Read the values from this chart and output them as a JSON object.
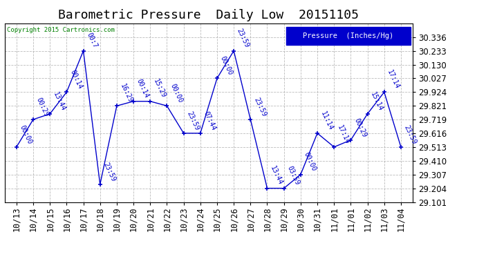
{
  "title": "Barometric Pressure  Daily Low  20151105",
  "copyright": "Copyright 2015 Cartronics.com",
  "legend_label": "Pressure  (Inches/Hg)",
  "line_color": "#0000CC",
  "background_color": "#ffffff",
  "grid_color": "#aaaaaa",
  "x_labels": [
    "10/13",
    "10/14",
    "10/15",
    "10/16",
    "10/17",
    "10/18",
    "10/19",
    "10/20",
    "10/21",
    "10/22",
    "10/23",
    "10/24",
    "10/25",
    "10/26",
    "10/27",
    "10/28",
    "10/29",
    "10/30",
    "10/31",
    "11/01",
    "11/01",
    "11/02",
    "11/03",
    "11/04"
  ],
  "y_values": [
    29.513,
    29.719,
    29.761,
    29.924,
    30.233,
    29.233,
    29.821,
    29.855,
    29.855,
    29.821,
    29.616,
    29.616,
    30.027,
    30.233,
    29.719,
    29.204,
    29.204,
    29.307,
    29.616,
    29.513,
    29.565,
    29.761,
    29.924,
    29.513
  ],
  "point_labels": [
    "00:00",
    "00:29",
    "13:44",
    "00:14",
    "00:7",
    "23:59",
    "16:29",
    "00:14",
    "15:29",
    "00:00",
    "23:59",
    "07:44",
    "00:00",
    "23:59",
    "23:59",
    "13:44",
    "03:59",
    "00:00",
    "11:14",
    "17:14",
    "00:29",
    "15:14",
    "17:14",
    "23:59"
  ],
  "ylim_min": 29.101,
  "ylim_max": 30.439,
  "yticks": [
    29.101,
    29.204,
    29.307,
    29.41,
    29.513,
    29.616,
    29.719,
    29.821,
    29.924,
    30.027,
    30.13,
    30.233,
    30.336
  ],
  "title_fontsize": 13,
  "tick_fontsize": 8.5,
  "label_fontsize": 7
}
